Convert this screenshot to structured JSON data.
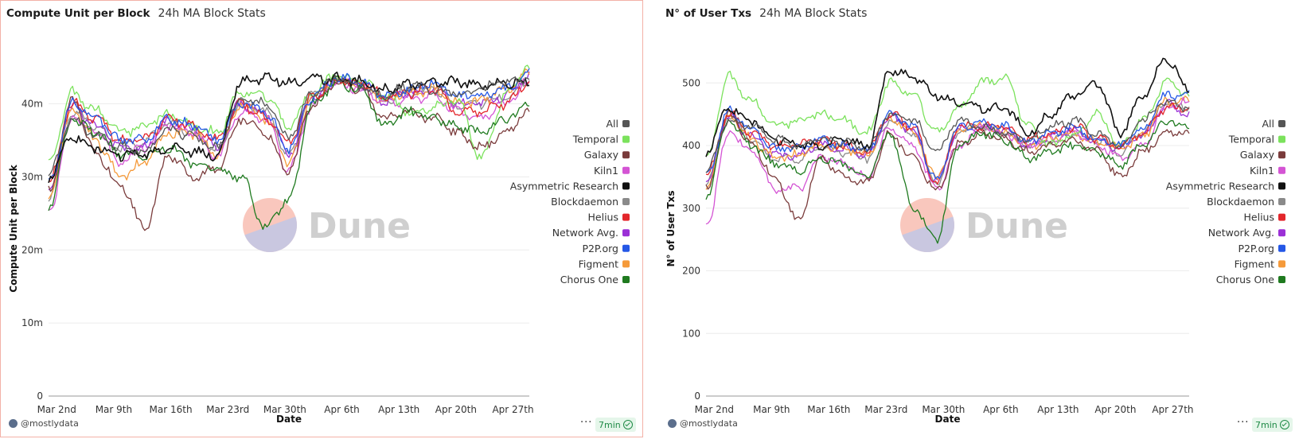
{
  "brand_colors": {
    "watermark_top": "#f9c7bd",
    "watermark_bottom": "#c9c7e0",
    "badge_bg": "#e5f6ea",
    "badge_fg": "#1f8a46"
  },
  "watermark": {
    "text": "Dune"
  },
  "chart_data": [
    {
      "id": "cu",
      "type": "line",
      "title": "Compute Unit per Block",
      "subtitle": "24h MA Block Stats",
      "xlabel": "Date",
      "ylabel": "Compute Unit per Block",
      "ylim": [
        0,
        48000000
      ],
      "yticks": [
        0,
        10000000,
        20000000,
        30000000,
        40000000
      ],
      "ytick_labels": [
        "0",
        "10m",
        "20m",
        "30m",
        "40m"
      ],
      "x_start": "Mar 1",
      "x_days": 59,
      "xtick_days": [
        1,
        8,
        15,
        22,
        29,
        36,
        43,
        50,
        57
      ],
      "xtick_labels": [
        "Mar 2nd",
        "Mar 9th",
        "Mar 16th",
        "Mar 23rd",
        "Mar 30th",
        "Apr 6th",
        "Apr 13th",
        "Apr 20th",
        "Apr 27th"
      ],
      "grid": true,
      "legend_position": "right",
      "series": [
        {
          "name": "All",
          "color": "#555555",
          "values": [
            30.5,
            38,
            35.5,
            34,
            33.5,
            36.5,
            35.5,
            34,
            40.5,
            40,
            35.5,
            41.5,
            43.5,
            42.5,
            41,
            42.5,
            42,
            41.5,
            42,
            43,
            43.5
          ]
        },
        {
          "name": "Temporal",
          "color": "#7be25c",
          "values": [
            32,
            41.5,
            39,
            36,
            37,
            38.5,
            37,
            36,
            41.5,
            41,
            37,
            41.5,
            44,
            43,
            41,
            39,
            39.5,
            40.5,
            32.5,
            41,
            45
          ]
        },
        {
          "name": "Galaxy",
          "color": "#7a3b3b",
          "values": [
            28,
            40.5,
            33,
            29,
            23,
            33,
            30,
            31,
            38,
            36,
            31,
            40,
            43,
            42,
            38,
            39,
            38,
            36,
            34,
            36,
            39
          ]
        },
        {
          "name": "Kiln1",
          "color": "#d454d4",
          "values": [
            25,
            38,
            36,
            32,
            34,
            37,
            36,
            33,
            39,
            38,
            31,
            40,
            43,
            42,
            40,
            40.5,
            41,
            39,
            38,
            40,
            43
          ]
        },
        {
          "name": "Asymmetric Research",
          "color": "#111111",
          "values": [
            30,
            35.5,
            34,
            33,
            33,
            34,
            33.5,
            33,
            43,
            43.5,
            43,
            43.5,
            43.5,
            43,
            42,
            42.5,
            43,
            43,
            42.5,
            43,
            43
          ]
        },
        {
          "name": "Blockdaemon",
          "color": "#8a8a8a",
          "values": [
            27,
            39,
            37,
            34,
            35,
            37.5,
            36,
            33.5,
            40,
            39,
            33,
            41,
            43.5,
            42.5,
            40.5,
            41.5,
            42,
            40,
            40,
            41,
            43
          ]
        },
        {
          "name": "Helius",
          "color": "#e3262b",
          "values": [
            29,
            40,
            38,
            35,
            35,
            38,
            37,
            35,
            40,
            38,
            35,
            41,
            43,
            43,
            41,
            41.5,
            42,
            39,
            39,
            40,
            43
          ]
        },
        {
          "name": "Network Avg.",
          "color": "#9b30d6",
          "values": [
            28,
            39.5,
            37,
            34,
            34,
            37.5,
            36.5,
            34,
            40,
            39,
            33,
            41,
            43.5,
            42.5,
            40.5,
            41.5,
            42,
            40,
            40,
            41,
            44
          ]
        },
        {
          "name": "P2P.org",
          "color": "#2457e6",
          "values": [
            29,
            40,
            38,
            35,
            35,
            38,
            37,
            35,
            40,
            39,
            34,
            41,
            43.5,
            43,
            41,
            42,
            43,
            41,
            41,
            42,
            44
          ]
        },
        {
          "name": "Figment",
          "color": "#f59a3a",
          "values": [
            27,
            39,
            35,
            30,
            32,
            36,
            36,
            33,
            40,
            38,
            32,
            41,
            43,
            42.5,
            40.5,
            41.5,
            42,
            40,
            40.5,
            42,
            44
          ]
        },
        {
          "name": "Chorus One",
          "color": "#1f7a1f",
          "values": [
            26,
            38,
            36,
            33,
            33,
            34,
            32,
            31,
            30,
            23,
            27,
            40,
            43,
            42,
            37,
            39,
            38,
            37,
            36,
            38,
            40
          ]
        }
      ]
    },
    {
      "id": "tx",
      "type": "line",
      "title": "N° of User Txs",
      "subtitle": "24h MA Block Stats",
      "xlabel": "Date",
      "ylabel": "N° of User Txs",
      "ylim": [
        0,
        560
      ],
      "yticks": [
        0,
        100,
        200,
        300,
        400,
        500
      ],
      "ytick_labels": [
        "0",
        "100",
        "200",
        "300",
        "400",
        "500"
      ],
      "x_start": "Mar 1",
      "x_days": 59,
      "xtick_days": [
        1,
        8,
        15,
        22,
        29,
        36,
        43,
        50,
        57
      ],
      "xtick_labels": [
        "Mar 2nd",
        "Mar 9th",
        "Mar 16th",
        "Mar 23rd",
        "Mar 30th",
        "Apr 6th",
        "Apr 13th",
        "Apr 20th",
        "Apr 27th"
      ],
      "grid": true,
      "legend_position": "right",
      "series": [
        {
          "name": "All",
          "color": "#555555",
          "values": [
            360,
            440,
            430,
            410,
            400,
            410,
            405,
            395,
            450,
            440,
            390,
            440,
            430,
            420,
            410,
            430,
            440,
            420,
            400,
            440,
            470,
            460
          ]
        },
        {
          "name": "Temporal",
          "color": "#7be25c",
          "values": [
            380,
            510,
            470,
            430,
            440,
            450,
            440,
            420,
            500,
            480,
            420,
            460,
            500,
            510,
            430,
            400,
            420,
            450,
            400,
            440,
            500,
            480
          ]
        },
        {
          "name": "Galaxy",
          "color": "#7a3b3b",
          "values": [
            330,
            450,
            400,
            350,
            280,
            380,
            350,
            340,
            420,
            380,
            330,
            400,
            420,
            410,
            390,
            400,
            410,
            390,
            350,
            390,
            420,
            420
          ]
        },
        {
          "name": "Kiln1",
          "color": "#d454d4",
          "values": [
            270,
            420,
            390,
            330,
            330,
            380,
            370,
            350,
            430,
            400,
            330,
            400,
            430,
            420,
            400,
            410,
            420,
            400,
            380,
            400,
            460,
            470
          ]
        },
        {
          "name": "Asymmetric Research",
          "color": "#111111",
          "values": [
            390,
            460,
            440,
            410,
            400,
            400,
            410,
            400,
            520,
            510,
            480,
            470,
            460,
            460,
            420,
            450,
            480,
            500,
            420,
            480,
            540,
            490
          ]
        },
        {
          "name": "Blockdaemon",
          "color": "#8a8a8a",
          "values": [
            340,
            450,
            410,
            380,
            380,
            400,
            390,
            380,
            440,
            420,
            340,
            420,
            430,
            420,
            400,
            410,
            420,
            410,
            390,
            420,
            470,
            460
          ]
        },
        {
          "name": "Helius",
          "color": "#e3262b",
          "values": [
            350,
            450,
            420,
            400,
            400,
            410,
            400,
            390,
            450,
            430,
            340,
            430,
            430,
            430,
            410,
            420,
            430,
            410,
            400,
            420,
            460,
            460
          ]
        },
        {
          "name": "Network Avg.",
          "color": "#9b30d6",
          "values": [
            340,
            445,
            415,
            385,
            385,
            400,
            395,
            385,
            445,
            425,
            340,
            425,
            430,
            425,
            400,
            415,
            425,
            405,
            395,
            415,
            465,
            450
          ]
        },
        {
          "name": "P2P.org",
          "color": "#2457e6",
          "values": [
            350,
            455,
            425,
            395,
            395,
            410,
            400,
            390,
            450,
            430,
            345,
            430,
            435,
            430,
            405,
            420,
            430,
            410,
            400,
            425,
            480,
            480
          ]
        },
        {
          "name": "Figment",
          "color": "#f59a3a",
          "values": [
            330,
            445,
            410,
            380,
            385,
            400,
            395,
            385,
            445,
            420,
            350,
            425,
            430,
            420,
            400,
            410,
            420,
            405,
            395,
            415,
            470,
            470
          ]
        },
        {
          "name": "Chorus One",
          "color": "#1f7a1f",
          "values": [
            320,
            440,
            400,
            370,
            360,
            380,
            370,
            350,
            420,
            300,
            250,
            400,
            420,
            410,
            380,
            390,
            400,
            390,
            370,
            400,
            440,
            430
          ]
        }
      ]
    }
  ],
  "footer": {
    "author": "@mostlydata",
    "more": "···",
    "refresh": "7min"
  }
}
